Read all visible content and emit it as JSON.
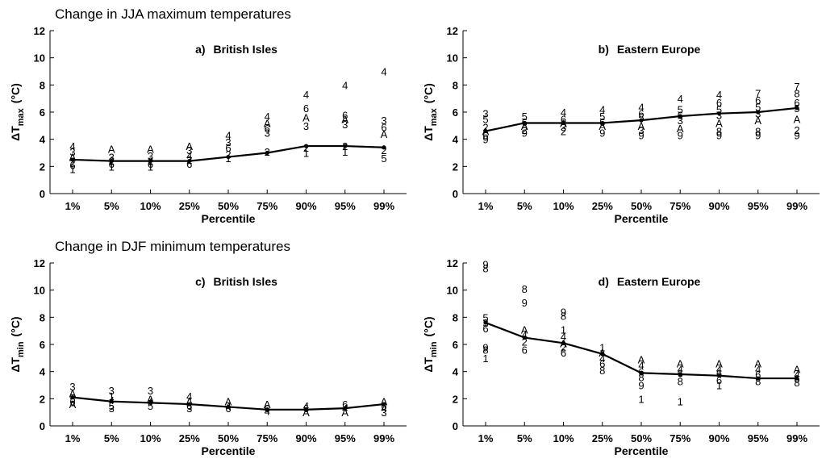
{
  "sections": {
    "top": "Change in JJA maximum temperatures",
    "bottom": "Change in DJF minimum temperatures"
  },
  "chart_data": [
    {
      "type": "line",
      "panel": "a)",
      "title": "British Isles",
      "xlabel": "Percentile",
      "ylabel_main": "ΔT",
      "ylabel_sub": "max",
      "ylabel_unit": "(°C)",
      "categories": [
        "1%",
        "5%",
        "10%",
        "25%",
        "50%",
        "75%",
        "90%",
        "95%",
        "99%"
      ],
      "ylim": [
        0,
        12
      ],
      "yticks": [
        0,
        2,
        4,
        6,
        8,
        10,
        12
      ],
      "series": [
        {
          "values": [
            2.5,
            2.4,
            2.4,
            2.4,
            2.7,
            3.0,
            3.5,
            3.5,
            3.4
          ]
        }
      ],
      "member_labels": [
        [
          [
            "4",
            3.5
          ],
          [
            "3",
            3.1
          ],
          [
            "A",
            2.7
          ],
          [
            "2",
            2.3
          ],
          [
            "6",
            2.1
          ],
          [
            "1",
            1.8
          ]
        ],
        [
          [
            "A",
            3.3
          ],
          [
            "3",
            2.7
          ],
          [
            "2",
            2.4
          ],
          [
            "6",
            2.2
          ],
          [
            "1",
            2.0
          ]
        ],
        [
          [
            "A",
            3.3
          ],
          [
            "3",
            2.8
          ],
          [
            "2",
            2.4
          ],
          [
            "6",
            2.2
          ],
          [
            "1",
            2.0
          ]
        ],
        [
          [
            "A",
            3.5
          ],
          [
            "3",
            3.2
          ],
          [
            "4",
            2.8
          ],
          [
            "2",
            2.5
          ],
          [
            "6",
            2.2
          ]
        ],
        [
          [
            "4",
            4.3
          ],
          [
            "3",
            3.8
          ],
          [
            "6",
            3.4
          ],
          [
            "2",
            2.9
          ],
          [
            "1",
            2.6
          ]
        ],
        [
          [
            "4",
            5.7
          ],
          [
            "A",
            5.2
          ],
          [
            "6",
            4.8
          ],
          [
            "3",
            4.5
          ],
          [
            "2",
            3.1
          ]
        ],
        [
          [
            "4",
            7.3
          ],
          [
            "6",
            6.3
          ],
          [
            "A",
            5.6
          ],
          [
            "3",
            5.0
          ],
          [
            "2",
            3.4
          ],
          [
            "1",
            3.0
          ]
        ],
        [
          [
            "4",
            8.0
          ],
          [
            "6",
            5.8
          ],
          [
            "A",
            5.5
          ],
          [
            "3",
            5.1
          ],
          [
            "2",
            3.5
          ],
          [
            "1",
            3.1
          ]
        ],
        [
          [
            "4",
            9.0
          ],
          [
            "3",
            5.4
          ],
          [
            "6",
            4.9
          ],
          [
            "A",
            4.4
          ],
          [
            "2",
            3.2
          ],
          [
            "5",
            2.6
          ]
        ]
      ]
    },
    {
      "type": "line",
      "panel": "b)",
      "title": "Eastern Europe",
      "xlabel": "Percentile",
      "ylabel_main": "ΔT",
      "ylabel_sub": "max",
      "ylabel_unit": "(°C)",
      "categories": [
        "1%",
        "5%",
        "10%",
        "25%",
        "50%",
        "75%",
        "90%",
        "95%",
        "99%"
      ],
      "ylim": [
        0,
        12
      ],
      "yticks": [
        0,
        2,
        4,
        6,
        8,
        10,
        12
      ],
      "series": [
        {
          "values": [
            4.6,
            5.2,
            5.2,
            5.2,
            5.4,
            5.7,
            5.9,
            6.0,
            6.3
          ]
        }
      ],
      "member_labels": [
        [
          [
            "3",
            5.9
          ],
          [
            "5",
            5.5
          ],
          [
            "2",
            4.9
          ],
          [
            "A",
            4.6
          ],
          [
            "6",
            4.3
          ],
          [
            "9",
            4.0
          ]
        ],
        [
          [
            "5",
            5.7
          ],
          [
            "6",
            5.3
          ],
          [
            "A",
            5.0
          ],
          [
            "2",
            4.7
          ],
          [
            "9",
            4.5
          ]
        ],
        [
          [
            "4",
            6.0
          ],
          [
            "6",
            5.5
          ],
          [
            "A",
            5.2
          ],
          [
            "3",
            4.9
          ],
          [
            "2",
            4.6
          ]
        ],
        [
          [
            "4",
            6.2
          ],
          [
            "5",
            5.7
          ],
          [
            "6",
            5.3
          ],
          [
            "A",
            5.0
          ],
          [
            "9",
            4.5
          ]
        ],
        [
          [
            "4",
            6.4
          ],
          [
            "6",
            5.9
          ],
          [
            "5",
            5.6
          ],
          [
            "A",
            5.0
          ],
          [
            "3",
            4.7
          ],
          [
            "9",
            4.3
          ]
        ],
        [
          [
            "4",
            7.0
          ],
          [
            "5",
            6.2
          ],
          [
            "6",
            5.8
          ],
          [
            "3",
            5.4
          ],
          [
            "A",
            4.8
          ],
          [
            "9",
            4.3
          ]
        ],
        [
          [
            "4",
            7.3
          ],
          [
            "6",
            6.7
          ],
          [
            "5",
            6.2
          ],
          [
            "3",
            5.8
          ],
          [
            "A",
            5.2
          ],
          [
            "8",
            4.6
          ],
          [
            "9",
            4.3
          ]
        ],
        [
          [
            "7",
            7.4
          ],
          [
            "6",
            6.9
          ],
          [
            "5",
            6.4
          ],
          [
            "3",
            5.9
          ],
          [
            "A",
            5.4
          ],
          [
            "8",
            4.6
          ],
          [
            "9",
            4.3
          ]
        ],
        [
          [
            "7",
            7.9
          ],
          [
            "8",
            7.4
          ],
          [
            "6",
            6.7
          ],
          [
            "5",
            6.3
          ],
          [
            "A",
            5.5
          ],
          [
            "2",
            4.7
          ],
          [
            "9",
            4.3
          ]
        ]
      ]
    },
    {
      "type": "line",
      "panel": "c)",
      "title": "British Isles",
      "xlabel": "Percentile",
      "ylabel_main": "ΔT",
      "ylabel_sub": "min",
      "ylabel_unit": "(°C)",
      "categories": [
        "1%",
        "5%",
        "10%",
        "25%",
        "50%",
        "75%",
        "90%",
        "95%",
        "99%"
      ],
      "ylim": [
        0,
        12
      ],
      "yticks": [
        0,
        2,
        4,
        6,
        8,
        10,
        12
      ],
      "series": [
        {
          "values": [
            2.1,
            1.8,
            1.7,
            1.6,
            1.4,
            1.2,
            1.2,
            1.3,
            1.6
          ]
        }
      ],
      "member_labels": [
        [
          [
            "3",
            2.9
          ],
          [
            "A",
            2.4
          ],
          [
            "5",
            2.0
          ],
          [
            "6",
            1.8
          ],
          [
            "A",
            1.6
          ]
        ],
        [
          [
            "3",
            2.6
          ],
          [
            "1",
            2.2
          ],
          [
            "4",
            1.9
          ],
          [
            "5",
            1.5
          ],
          [
            "3",
            1.3
          ]
        ],
        [
          [
            "3",
            2.6
          ],
          [
            "A",
            2.0
          ],
          [
            "4",
            1.8
          ],
          [
            "5",
            1.5
          ]
        ],
        [
          [
            "4",
            2.2
          ],
          [
            "A",
            1.8
          ],
          [
            "6",
            1.5
          ],
          [
            "3",
            1.3
          ]
        ],
        [
          [
            "A",
            1.8
          ],
          [
            "4",
            1.5
          ],
          [
            "6",
            1.3
          ]
        ],
        [
          [
            "A",
            1.6
          ],
          [
            "6",
            1.3
          ],
          [
            "4",
            1.1
          ]
        ],
        [
          [
            "4",
            1.5
          ],
          [
            "6",
            1.3
          ],
          [
            "A",
            1.0
          ]
        ],
        [
          [
            "6",
            1.6
          ],
          [
            "4",
            1.3
          ],
          [
            "A",
            1.0
          ]
        ],
        [
          [
            "A",
            1.8
          ],
          [
            "6",
            1.5
          ],
          [
            "4",
            1.3
          ],
          [
            "3",
            1.0
          ]
        ]
      ]
    },
    {
      "type": "line",
      "panel": "d)",
      "title": "Eastern Europe",
      "xlabel": "Percentile",
      "ylabel_main": "ΔT",
      "ylabel_sub": "min",
      "ylabel_unit": "(°C)",
      "categories": [
        "1%",
        "5%",
        "10%",
        "25%",
        "50%",
        "75%",
        "90%",
        "95%",
        "99%"
      ],
      "ylim": [
        0,
        12
      ],
      "yticks": [
        0,
        2,
        4,
        6,
        8,
        10,
        12
      ],
      "series": [
        {
          "values": [
            7.6,
            6.5,
            6.1,
            5.3,
            3.9,
            3.8,
            3.7,
            3.5,
            3.5
          ]
        }
      ],
      "member_labels": [
        [
          [
            "9",
            11.9
          ],
          [
            "8",
            11.6
          ],
          [
            "5",
            8.0
          ],
          [
            "3",
            7.6
          ],
          [
            "6",
            7.2
          ],
          [
            "9",
            5.8
          ],
          [
            "8",
            5.6
          ],
          [
            "1",
            5.0
          ]
        ],
        [
          [
            "8",
            10.1
          ],
          [
            "9",
            9.1
          ],
          [
            "A",
            7.1
          ],
          [
            "4",
            6.7
          ],
          [
            "2",
            6.2
          ],
          [
            "6",
            5.6
          ]
        ],
        [
          [
            "9",
            8.4
          ],
          [
            "8",
            8.1
          ],
          [
            "1",
            7.1
          ],
          [
            "4",
            6.6
          ],
          [
            "A",
            6.1
          ],
          [
            "2",
            5.8
          ],
          [
            "6",
            5.4
          ]
        ],
        [
          [
            "1",
            5.8
          ],
          [
            "A",
            5.4
          ],
          [
            "4",
            5.0
          ],
          [
            "6",
            4.6
          ],
          [
            "8",
            4.1
          ]
        ],
        [
          [
            "A",
            4.9
          ],
          [
            "4",
            4.5
          ],
          [
            "6",
            4.0
          ],
          [
            "8",
            3.6
          ],
          [
            "9",
            3.0
          ],
          [
            "1",
            2.0
          ]
        ],
        [
          [
            "A",
            4.6
          ],
          [
            "4",
            4.2
          ],
          [
            "6",
            3.9
          ],
          [
            "8",
            3.3
          ],
          [
            "1",
            1.8
          ]
        ],
        [
          [
            "A",
            4.6
          ],
          [
            "4",
            4.2
          ],
          [
            "6",
            3.9
          ],
          [
            "6",
            3.4
          ],
          [
            "1",
            3.0
          ]
        ],
        [
          [
            "A",
            4.6
          ],
          [
            "4",
            4.2
          ],
          [
            "6",
            3.8
          ],
          [
            "8",
            3.3
          ]
        ],
        [
          [
            "A",
            4.2
          ],
          [
            "4",
            3.8
          ],
          [
            "6",
            3.5
          ],
          [
            "8",
            3.2
          ]
        ]
      ]
    }
  ]
}
